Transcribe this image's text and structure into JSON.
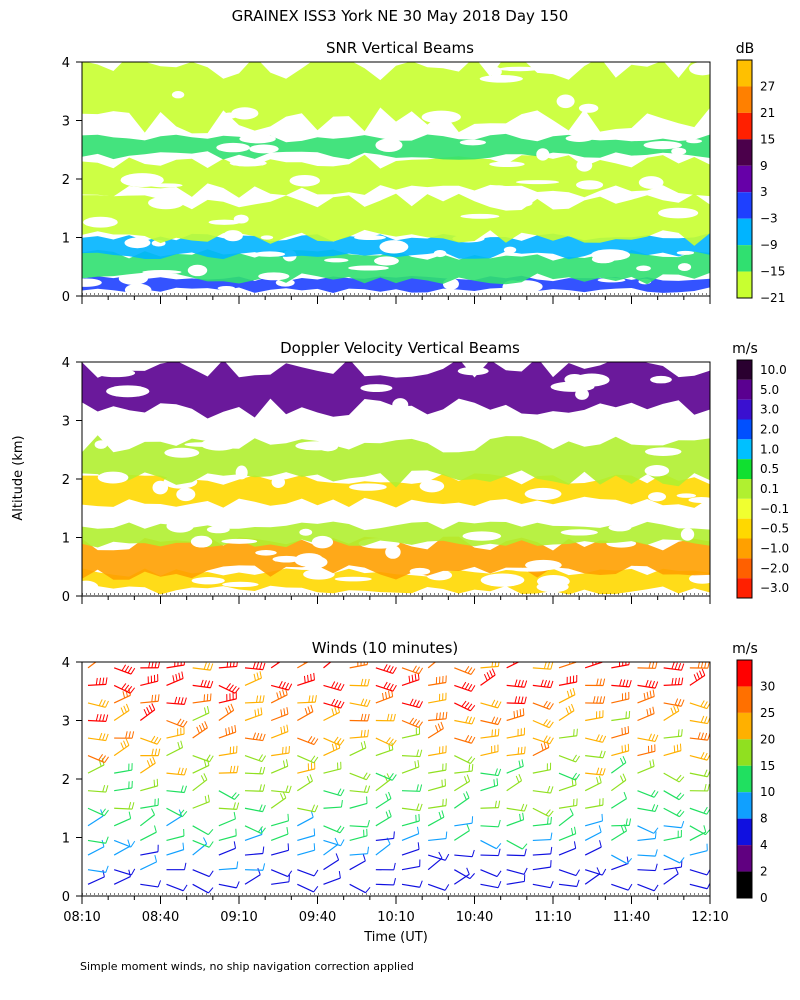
{
  "title": "GRAINEX ISS3 York NE  30 May 2018 Day 150",
  "footnote": "Simple moment winds, no ship navigation correction applied",
  "ylabel": "Altitude (km)",
  "xlabel": "Time (UT)",
  "chart_data": [
    {
      "type": "heatmap",
      "title": "SNR Vertical Beams",
      "unit": "dB",
      "xlim": [
        "08:10",
        "12:10"
      ],
      "ylim": [
        0,
        4
      ],
      "yticks": [
        "0",
        "1",
        "2",
        "3",
        "4"
      ],
      "colorbar_labels": [
        "27",
        "21",
        "15",
        "9",
        "3",
        "−3",
        "−9",
        "−15",
        "−21"
      ],
      "colorbar_colors": [
        "#ffc000",
        "#ff8000",
        "#ff2000",
        "#4b004b",
        "#6600a8",
        "#1e40ff",
        "#00b4ff",
        "#30e070",
        "#c8ff30"
      ],
      "bands": [
        {
          "km": [
            0.1,
            0.3
          ],
          "color": "#1e40ff"
        },
        {
          "km": [
            0.3,
            0.7
          ],
          "color": "#30e070"
        },
        {
          "km": [
            0.7,
            1.0
          ],
          "color": "#00b4ff"
        },
        {
          "km": [
            1.0,
            1.6
          ],
          "color": "#c8ff30"
        },
        {
          "km": [
            1.8,
            2.3
          ],
          "color": "#c8ff30"
        },
        {
          "km": [
            2.4,
            2.7
          ],
          "color": "#30e070"
        },
        {
          "km": [
            3.0,
            3.9
          ],
          "color": "#c8ff30"
        }
      ]
    },
    {
      "type": "heatmap",
      "title": "Doppler Velocity Vertical Beams",
      "unit": "m/s",
      "xlim": [
        "08:10",
        "12:10"
      ],
      "ylim": [
        0,
        4
      ],
      "yticks": [
        "0",
        "1",
        "2",
        "3",
        "4"
      ],
      "colorbar_labels": [
        "10.0",
        "5.0",
        "3.0",
        "2.0",
        "1.0",
        "0.5",
        "0.1",
        "−0.1",
        "−0.5",
        "−1.0",
        "−2.0",
        "−3.0"
      ],
      "colorbar_colors": [
        "#2a0030",
        "#5a0090",
        "#3a10d0",
        "#0050ff",
        "#00c0ff",
        "#10e030",
        "#b0f030",
        "#f0ff30",
        "#ffd800",
        "#ffa000",
        "#ff6000",
        "#ff2000"
      ],
      "bands": [
        {
          "km": [
            0.1,
            0.4
          ],
          "color": "#ffd800"
        },
        {
          "km": [
            0.4,
            0.9
          ],
          "color": "#ffa000"
        },
        {
          "km": [
            0.9,
            1.2
          ],
          "color": "#b0f030"
        },
        {
          "km": [
            1.6,
            2.0
          ],
          "color": "#ffd800"
        },
        {
          "km": [
            2.0,
            2.6
          ],
          "color": "#b0f030"
        },
        {
          "km": [
            3.2,
            3.9
          ],
          "color": "#5a0090"
        }
      ]
    },
    {
      "type": "scatter",
      "title": "Winds (10 minutes)",
      "unit": "m/s",
      "xlim": [
        "08:10",
        "12:10"
      ],
      "ylim": [
        0,
        4
      ],
      "yticks": [
        "0",
        "1",
        "2",
        "3",
        "4"
      ],
      "xticks": [
        "08:10",
        "08:40",
        "09:10",
        "09:40",
        "10:10",
        "10:40",
        "11:10",
        "11:40",
        "12:10"
      ],
      "colorbar_labels": [
        "30",
        "25",
        "20",
        "15",
        "10",
        "8",
        "4",
        "2",
        "0"
      ],
      "colorbar_colors": [
        "#ff0000",
        "#ff7000",
        "#ffb000",
        "#90e020",
        "#20e060",
        "#10a0ff",
        "#1010e0",
        "#600080",
        "#000000"
      ],
      "profiles_min": [
        0,
        10,
        20,
        30,
        40,
        50,
        60,
        70,
        80,
        90,
        100,
        110,
        120,
        130,
        140,
        150,
        160,
        170,
        180,
        190,
        200,
        210,
        220,
        230
      ],
      "levels_km": [
        0.2,
        0.45,
        0.7,
        0.95,
        1.2,
        1.5,
        1.8,
        2.1,
        2.4,
        2.7,
        3.0,
        3.3,
        3.6,
        3.9
      ],
      "speed_by_level_ms": [
        6,
        7,
        8,
        10,
        12,
        14,
        16,
        18,
        21,
        24,
        26,
        28,
        30,
        30
      ]
    }
  ]
}
